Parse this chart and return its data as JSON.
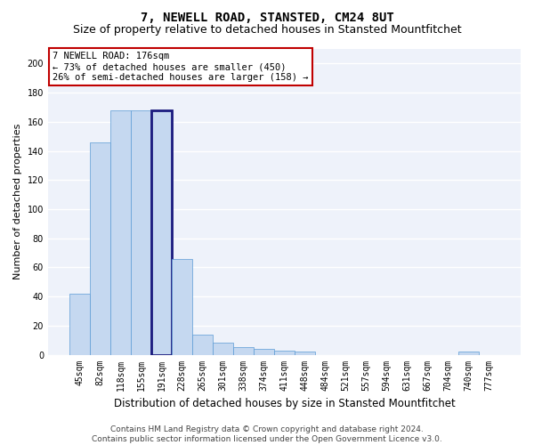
{
  "title": "7, NEWELL ROAD, STANSTED, CM24 8UT",
  "subtitle": "Size of property relative to detached houses in Stansted Mountfitchet",
  "xlabel": "Distribution of detached houses by size in Stansted Mountfitchet",
  "ylabel": "Number of detached properties",
  "footer_line1": "Contains HM Land Registry data © Crown copyright and database right 2024.",
  "footer_line2": "Contains public sector information licensed under the Open Government Licence v3.0.",
  "categories": [
    "45sqm",
    "82sqm",
    "118sqm",
    "155sqm",
    "191sqm",
    "228sqm",
    "265sqm",
    "301sqm",
    "338sqm",
    "374sqm",
    "411sqm",
    "448sqm",
    "484sqm",
    "521sqm",
    "557sqm",
    "594sqm",
    "631sqm",
    "667sqm",
    "704sqm",
    "740sqm",
    "777sqm"
  ],
  "values": [
    42,
    146,
    168,
    168,
    168,
    66,
    14,
    8,
    5,
    4,
    3,
    2,
    0,
    0,
    0,
    0,
    0,
    0,
    0,
    2,
    0
  ],
  "bar_color": "#c5d8f0",
  "bar_edge_color": "#5b9bd5",
  "highlight_bar_index": 4,
  "highlight_bar_edge_color": "#1a1a7e",
  "annotation_text": "7 NEWELL ROAD: 176sqm\n← 73% of detached houses are smaller (450)\n26% of semi-detached houses are larger (158) →",
  "annotation_box_color": "#ffffff",
  "annotation_box_edge_color": "#c00000",
  "ylim": [
    0,
    210
  ],
  "yticks": [
    0,
    20,
    40,
    60,
    80,
    100,
    120,
    140,
    160,
    180,
    200
  ],
  "bg_color": "#eef2fa",
  "grid_color": "#ffffff",
  "fig_bg_color": "#ffffff",
  "title_fontsize": 10,
  "subtitle_fontsize": 9,
  "xlabel_fontsize": 8.5,
  "ylabel_fontsize": 8,
  "tick_fontsize": 7,
  "footer_fontsize": 6.5,
  "annot_fontsize": 7.5
}
